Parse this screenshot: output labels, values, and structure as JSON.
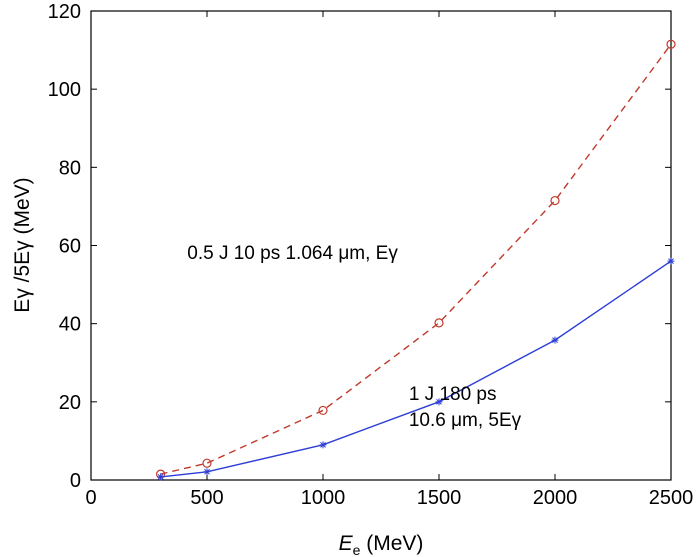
{
  "chart_data": {
    "type": "line",
    "xlim": [
      0,
      2500
    ],
    "ylim": [
      0,
      120
    ],
    "xticks": [
      0,
      500,
      1000,
      1500,
      2000,
      2500
    ],
    "yticks": [
      0,
      20,
      40,
      60,
      80,
      100,
      120
    ],
    "xticklabels": [
      "0",
      "500",
      "1000",
      "1500",
      "2000",
      "2500"
    ],
    "yticklabels": [
      "0",
      "20",
      "40",
      "60",
      "80",
      "100",
      "120"
    ],
    "xlabel": {
      "main": "E",
      "sub": "e",
      "unit": " (MeV)"
    },
    "ylabel": "Eγ /5Eγ (MeV)",
    "grid": false,
    "series": [
      {
        "style": "dashed",
        "marker": "circle",
        "color": "#c0392b",
        "x": [
          300,
          500,
          1000,
          1500,
          2000,
          2500
        ],
        "y": [
          1.5,
          4.3,
          17.8,
          40.2,
          71.5,
          111.5
        ]
      },
      {
        "style": "solid",
        "marker": "asterisk",
        "color": "#2e3fd6",
        "x": [
          300,
          500,
          1000,
          1500,
          2000,
          2500
        ],
        "y": [
          0.8,
          2.1,
          9.0,
          20.0,
          35.8,
          56.0
        ]
      }
    ],
    "annotations": [
      {
        "id": "dashed-annotation",
        "x": 415,
        "y": 56.5,
        "lines": [
          "0.5 J 10 ps 1.064 μm, Eγ"
        ]
      },
      {
        "id": "solid-annotation",
        "x": 1370,
        "y": 20.5,
        "lines": [
          "1 J 180 ps",
          "10.6 μm, 5Eγ"
        ]
      }
    ]
  }
}
